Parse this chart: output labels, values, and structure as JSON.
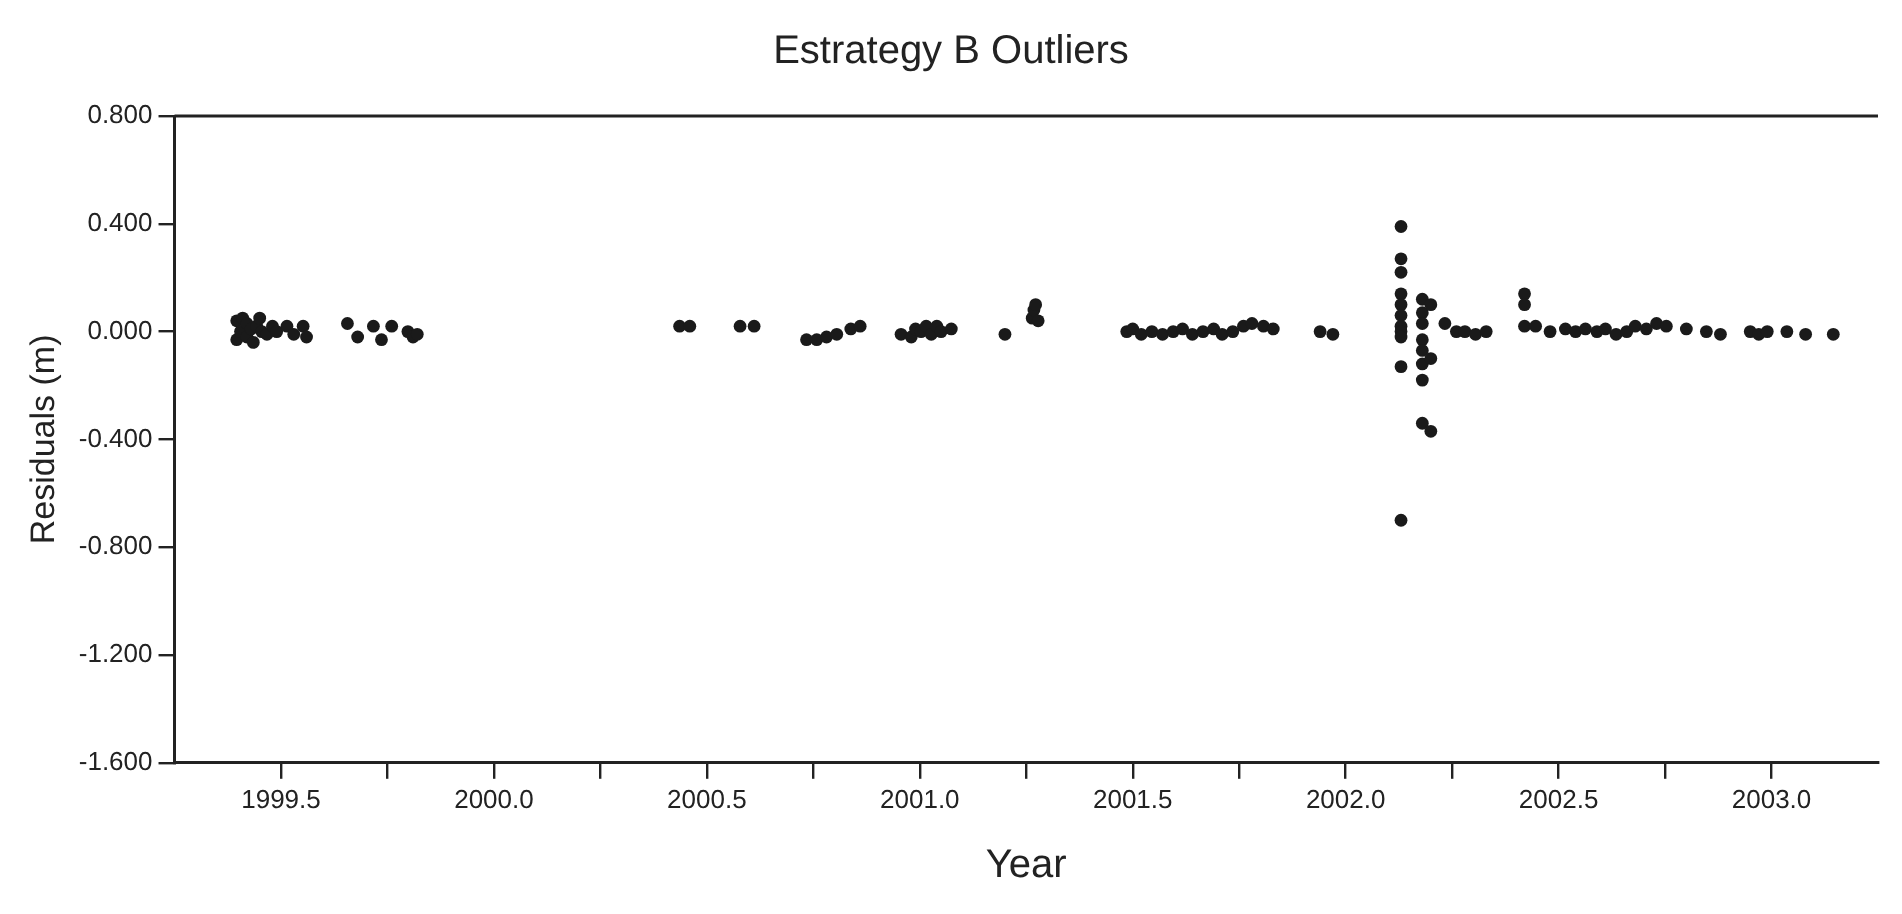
{
  "chart_data": {
    "type": "scatter",
    "title": "Estrategy B Outliers",
    "xlabel": "Year",
    "ylabel": "Residuals (m)",
    "xlim": [
      1999.25,
      2003.25
    ],
    "xticks": [
      {
        "value": 1999.5,
        "label": "1999.5"
      },
      {
        "value": 1999.75,
        "label": null
      },
      {
        "value": 2000,
        "label": "2000.0"
      },
      {
        "value": 2000.25,
        "label": null
      },
      {
        "value": 2000.5,
        "label": "2000.5"
      },
      {
        "value": 2000.75,
        "label": null
      },
      {
        "value": 2001,
        "label": "2001.0"
      },
      {
        "value": 2001.25,
        "label": null
      },
      {
        "value": 2001.5,
        "label": "2001.5"
      },
      {
        "value": 2001.75,
        "label": null
      },
      {
        "value": 2002,
        "label": "2002.0"
      },
      {
        "value": 2002.25,
        "label": null
      },
      {
        "value": 2002.5,
        "label": "2002.5"
      },
      {
        "value": 2002.75,
        "label": null
      },
      {
        "value": 2003,
        "label": "2003.0"
      }
    ],
    "ylim": [
      -1.6,
      0.8
    ],
    "yticks": [
      {
        "value": -1.6,
        "label": "-1.600"
      },
      {
        "value": -1.2,
        "label": "-1.200"
      },
      {
        "value": -0.8,
        "label": "-0.800"
      },
      {
        "value": -0.4,
        "label": "-0.400"
      },
      {
        "value": 0,
        "label": "0.000"
      },
      {
        "value": 0.4,
        "label": "0.400"
      },
      {
        "value": 0.8,
        "label": "0.800"
      }
    ],
    "grid": false,
    "legend": false,
    "marker": "circle",
    "series": [
      {
        "color": "#1a1a1a",
        "x": [
          1999.396,
          1999.396,
          1999.405,
          1999.41,
          1999.42,
          1999.42,
          1999.43,
          1999.435,
          1999.443,
          1999.45,
          1999.455,
          1999.467,
          1999.48,
          1999.49,
          1999.514,
          1999.53,
          1999.552,
          1999.56,
          1999.656,
          1999.68,
          1999.717,
          1999.736,
          1999.76,
          1999.798,
          1999.81,
          1999.82,
          2000.436,
          2000.46,
          2000.578,
          2000.611,
          2000.734,
          2000.758,
          2000.781,
          2000.805,
          2000.838,
          2000.86,
          2000.956,
          2000.98,
          2000.99,
          2001.003,
          2001.015,
          2001.027,
          2001.04,
          2001.05,
          2001.074,
          2001.2,
          2001.264,
          2001.268,
          2001.272,
          2001.278,
          2001.486,
          2001.5,
          2001.52,
          2001.545,
          2001.57,
          2001.595,
          2001.617,
          2001.64,
          2001.665,
          2001.69,
          2001.71,
          2001.735,
          2001.76,
          2001.78,
          2001.807,
          2001.83,
          2001.94,
          2001.97,
          2002.13,
          2002.13,
          2002.13,
          2002.13,
          2002.13,
          2002.13,
          2002.13,
          2002.13,
          2002.13,
          2002.13,
          2002.13,
          2002.18,
          2002.18,
          2002.18,
          2002.18,
          2002.18,
          2002.18,
          2002.18,
          2002.18,
          2002.2,
          2002.2,
          2002.2,
          2002.233,
          2002.26,
          2002.28,
          2002.305,
          2002.33,
          2002.42,
          2002.42,
          2002.42,
          2002.446,
          2002.48,
          2002.516,
          2002.54,
          2002.563,
          2002.59,
          2002.61,
          2002.635,
          2002.66,
          2002.68,
          2002.706,
          2002.73,
          2002.753,
          2002.8,
          2002.847,
          2002.88,
          2002.95,
          2002.97,
          2002.99,
          2003.036,
          2003.08,
          2003.145
        ],
        "values": [
          0.04,
          -0.03,
          0,
          0.05,
          -0.02,
          0.03,
          0.01,
          -0.04,
          0.02,
          0.05,
          0,
          -0.01,
          0.02,
          0,
          0.02,
          -0.01,
          0.02,
          -0.02,
          0.03,
          -0.02,
          0.02,
          -0.03,
          0.02,
          0,
          -0.02,
          -0.01,
          0.02,
          0.02,
          0.02,
          0.02,
          -0.03,
          -0.03,
          -0.02,
          -0.01,
          0.01,
          0.02,
          -0.01,
          -0.02,
          0.01,
          0,
          0.02,
          -0.01,
          0.02,
          0,
          0.01,
          -0.01,
          0.05,
          0.08,
          0.1,
          0.04,
          0,
          0.01,
          -0.01,
          0,
          -0.01,
          0,
          0.01,
          -0.01,
          0,
          0.01,
          -0.01,
          0,
          0.02,
          0.03,
          0.02,
          0.01,
          0,
          -0.01,
          0.39,
          0.27,
          0.22,
          0.14,
          0.1,
          0.06,
          0.02,
          0,
          -0.02,
          -0.13,
          -0.7,
          0.12,
          0.07,
          0.03,
          -0.03,
          -0.07,
          -0.12,
          -0.18,
          -0.34,
          0.1,
          -0.1,
          -0.37,
          0.03,
          0,
          0,
          -0.01,
          0,
          0.14,
          0.1,
          0.02,
          0.02,
          0,
          0.01,
          0,
          0.01,
          0,
          0.01,
          -0.01,
          0,
          0.02,
          0.01,
          0.03,
          0.02,
          0.01,
          0,
          -0.01,
          0,
          -0.01,
          0,
          0,
          -0.01,
          -0.01
        ]
      }
    ]
  }
}
